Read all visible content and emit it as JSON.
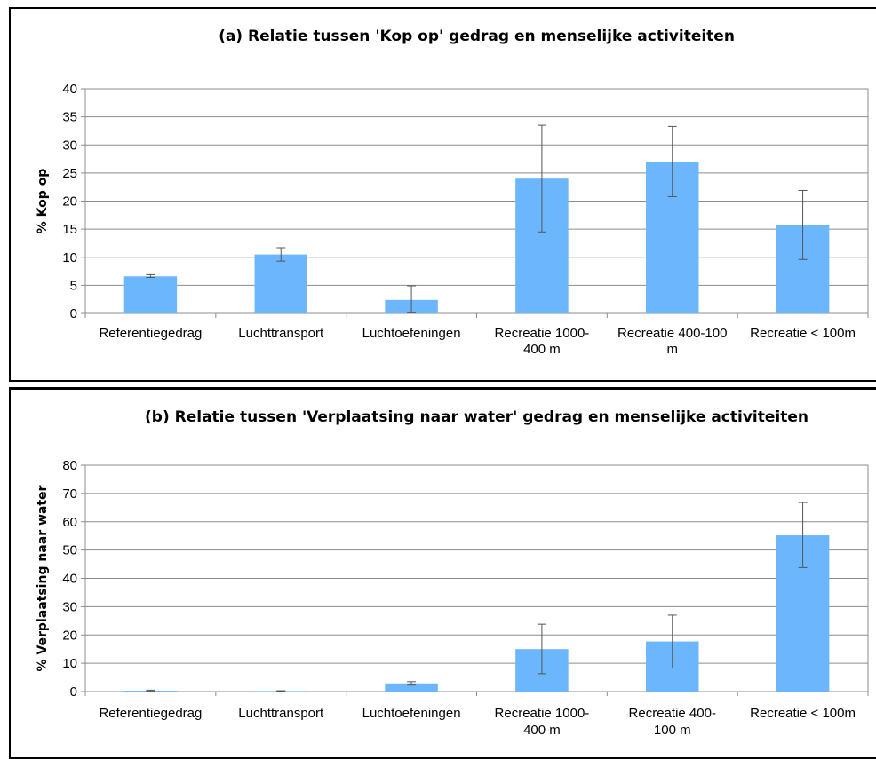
{
  "charts": [
    {
      "id": "a",
      "chart_data": {
        "type": "bar",
        "title": "(a) Relatie tussen 'Kop op' gedrag en menselijke activiteiten",
        "xlabel": "",
        "ylabel": "% Kop op",
        "ylim": [
          0,
          40
        ],
        "yticks": [
          0,
          5,
          10,
          15,
          20,
          25,
          30,
          35,
          40
        ],
        "grid": true,
        "categories": [
          [
            "Referentiegedrag"
          ],
          [
            "Luchttransport"
          ],
          [
            "Luchtoefeningen"
          ],
          [
            "Recreatie 1000-",
            "400 m"
          ],
          [
            "Recreatie 400-100",
            "m"
          ],
          [
            "Recreatie < 100m"
          ]
        ],
        "values": [
          6.6,
          10.5,
          2.4,
          24.0,
          27.0,
          15.8
        ],
        "error_low": [
          6.4,
          9.3,
          0.1,
          14.5,
          20.8,
          9.6
        ],
        "error_high": [
          6.9,
          11.7,
          4.9,
          33.5,
          33.3,
          21.9
        ],
        "bar_color": "#6bb6fc"
      }
    },
    {
      "id": "b",
      "chart_data": {
        "type": "bar",
        "title": "(b) Relatie tussen 'Verplaatsing naar water' gedrag en menselijke activiteiten",
        "xlabel": "",
        "ylabel": "% Verplaatsing naar water",
        "ylim": [
          0,
          80
        ],
        "yticks": [
          0,
          10,
          20,
          30,
          40,
          50,
          60,
          70,
          80
        ],
        "grid": true,
        "categories": [
          [
            "Referentiegedrag"
          ],
          [
            "Luchttransport"
          ],
          [
            "Luchtoefeningen"
          ],
          [
            "Recreatie 1000-",
            "400 m"
          ],
          [
            "Recreatie 400-",
            "100 m"
          ],
          [
            "Recreatie < 100m"
          ]
        ],
        "values": [
          0.3,
          0.2,
          2.9,
          15.0,
          17.7,
          55.2
        ],
        "error_low": [
          0.1,
          0.1,
          2.3,
          6.3,
          8.3,
          43.8
        ],
        "error_high": [
          0.5,
          0.3,
          3.5,
          23.8,
          27.0,
          66.8
        ],
        "bar_color": "#6bb6fc"
      }
    }
  ]
}
